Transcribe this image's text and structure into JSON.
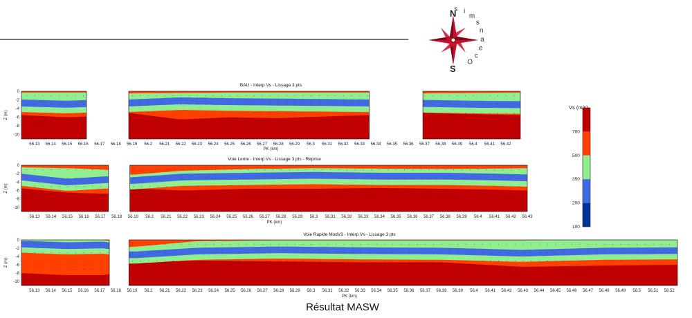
{
  "logo": {
    "letters": [
      "O",
      "c",
      "e",
      "a",
      "n",
      "s",
      "m",
      "i",
      "s"
    ],
    "compass": {
      "north": "N",
      "south": "S"
    },
    "colors": {
      "primary": "#c8102e",
      "dark": "#7a0a14"
    }
  },
  "figure_title": "Résultat MASW",
  "colorbar": {
    "title": "Vs (m/s)",
    "ticks": [
      "700",
      "500",
      "350",
      "200",
      "100"
    ],
    "classes": [
      {
        "range": "> 700",
        "color": "#c00000"
      },
      {
        "range": "500-700",
        "color": "#ff4000"
      },
      {
        "range": "350-500",
        "color": "#90ee90"
      },
      {
        "range": "200-350",
        "color": "#4169e1"
      },
      {
        "range": "100-200",
        "color": "#003399"
      }
    ]
  },
  "chart_data": [
    {
      "type": "heatmap",
      "title": "BAU - Interp Vs - Lissage 3 pts",
      "xlabel": "PK (km)",
      "ylabel": "Z (m)",
      "x_ticks": [
        "56.13",
        "56.14",
        "56.15",
        "56.16",
        "56.17",
        "56.18",
        "56.19",
        "56.2",
        "56.21",
        "56.22",
        "56.23",
        "56.24",
        "56.25",
        "56.26",
        "56.27",
        "56.28",
        "56.29",
        "56.3",
        "56.31",
        "56.32",
        "56.33",
        "56.34",
        "56.35",
        "56.36",
        "56.37",
        "56.38",
        "56.39",
        "56.4",
        "56.41",
        "56.42"
      ],
      "y_ticks": [
        "0",
        "-2",
        "-4",
        "-6",
        "-8",
        "-10"
      ],
      "xlim": [
        56.122,
        56.429
      ],
      "ylim": [
        -11,
        0
      ],
      "gaps": [
        [
          56.162,
          56.188
        ],
        [
          56.336,
          56.369
        ]
      ],
      "layer_boundaries": [
        {
          "x": [
            56.122,
            56.15,
            56.165,
            56.188,
            56.22,
            56.25,
            56.28,
            56.31,
            56.336,
            56.369,
            56.4,
            56.429
          ],
          "z": [
            -1.0,
            -1.0,
            -1.0,
            -1.2,
            -1.1,
            -1.0,
            -1.0,
            -1.0,
            -1.0,
            -1.2,
            -1.1,
            -1.0
          ]
        },
        {
          "x": [
            56.122,
            56.15,
            56.165,
            56.188,
            56.22,
            56.25,
            56.28,
            56.31,
            56.336,
            56.369,
            56.4,
            56.429
          ],
          "z": [
            -3.5,
            -3.8,
            -3.6,
            -3.5,
            -3.0,
            -3.2,
            -3.3,
            -3.4,
            -3.5,
            -3.6,
            -3.8,
            -3.9
          ]
        },
        {
          "x": [
            56.122,
            56.15,
            56.165,
            56.188,
            56.22,
            56.25,
            56.28,
            56.31,
            56.336,
            56.369,
            56.4,
            56.429
          ],
          "z": [
            -5.5,
            -6.0,
            -5.8,
            -5.0,
            -6.5,
            -6.0,
            -6.2,
            -5.8,
            -5.5,
            -5.0,
            -5.3,
            -5.5
          ]
        }
      ]
    },
    {
      "type": "heatmap",
      "title": "Voie Lente - Interp Vs - Lissage 3 pts - Reprise",
      "xlabel": "PK (km)",
      "ylabel": "Z (m)",
      "x_ticks": [
        "56.13",
        "56.14",
        "56.15",
        "56.16",
        "56.17",
        "56.18",
        "56.19",
        "56.2",
        "56.21",
        "56.22",
        "56.23",
        "56.24",
        "56.25",
        "56.26",
        "56.27",
        "56.28",
        "56.29",
        "56.3",
        "56.31",
        "56.32",
        "56.33",
        "56.34",
        "56.35",
        "56.36",
        "56.37",
        "56.38",
        "56.39",
        "56.4",
        "56.41",
        "56.42",
        "56.43"
      ],
      "y_ticks": [
        "0",
        "-2",
        "-4",
        "-6",
        "-8",
        "-10"
      ],
      "xlim": [
        56.122,
        56.43
      ],
      "ylim": [
        -11,
        0
      ],
      "gaps": [
        [
          56.175,
          56.188
        ]
      ],
      "layer_boundaries": [
        {
          "x": [
            56.122,
            56.15,
            56.175,
            56.188,
            56.22,
            56.26,
            56.3,
            56.34,
            56.38,
            56.41,
            56.43
          ],
          "z": [
            -1.2,
            -1.4,
            -1.8,
            -3.0,
            -2.0,
            -1.6,
            -1.4,
            -1.5,
            -1.6,
            -1.5,
            -1.4
          ]
        },
        {
          "x": [
            56.122,
            56.15,
            56.175,
            56.188,
            56.22,
            56.26,
            56.3,
            56.34,
            56.38,
            56.41,
            56.43
          ],
          "z": [
            -3.6,
            -4.8,
            -4.2,
            -4.5,
            -3.6,
            -3.4,
            -3.2,
            -3.4,
            -3.4,
            -3.6,
            -3.8
          ]
        },
        {
          "x": [
            56.122,
            56.15,
            56.175,
            56.188,
            56.22,
            56.26,
            56.3,
            56.34,
            56.38,
            56.41,
            56.43
          ],
          "z": [
            -5.5,
            -6.5,
            -6.8,
            -5.5,
            -6.0,
            -5.6,
            -5.6,
            -5.4,
            -5.6,
            -5.8,
            -6.0
          ]
        }
      ]
    },
    {
      "type": "heatmap",
      "title": "Voie Rapide ModV3 - Interp Vs - Lissage 3 pts",
      "xlabel": "PK (km)",
      "ylabel": "Z (m)",
      "x_ticks": [
        "56.13",
        "56.14",
        "56.15",
        "56.16",
        "56.17",
        "56.18",
        "56.19",
        "56.2",
        "56.21",
        "56.22",
        "56.23",
        "56.24",
        "56.25",
        "56.26",
        "56.27",
        "56.28",
        "56.29",
        "56.3",
        "56.31",
        "56.32",
        "56.33",
        "56.34",
        "56.35",
        "56.36",
        "56.37",
        "56.38",
        "56.39",
        "56.4",
        "56.41",
        "56.42",
        "56.43",
        "56.44",
        "56.45",
        "56.46",
        "56.47",
        "56.48",
        "56.49",
        "56.5",
        "56.51",
        "56.52"
      ],
      "y_ticks": [
        "0",
        "-2",
        "-4",
        "-6",
        "-8",
        "-10"
      ],
      "xlim": [
        56.122,
        56.525
      ],
      "ylim": [
        -11,
        0
      ],
      "gaps": [
        [
          56.176,
          56.188
        ]
      ],
      "layer_boundaries": [
        {
          "x": [
            56.122,
            56.15,
            56.176,
            56.188,
            56.23,
            56.28,
            56.33,
            56.38,
            56.43,
            56.48,
            56.525
          ],
          "z": [
            -0.5,
            -0.6,
            -0.8,
            -2.5,
            -1.0,
            -0.8,
            -0.8,
            -0.8,
            -0.8,
            -0.7,
            -0.6
          ]
        },
        {
          "x": [
            56.122,
            56.15,
            56.176,
            56.188,
            56.23,
            56.28,
            56.33,
            56.38,
            56.43,
            56.48,
            56.525
          ],
          "z": [
            -1.8,
            -2.2,
            -2.0,
            -4.5,
            -3.5,
            -3.2,
            -3.4,
            -3.5,
            -4.0,
            -3.5,
            -3.4
          ]
        },
        {
          "x": [
            56.122,
            56.15,
            56.176,
            56.188,
            56.23,
            56.28,
            56.33,
            56.38,
            56.43,
            56.48,
            56.525
          ],
          "z": [
            -8.0,
            -8.5,
            -8.5,
            -5.5,
            -5.0,
            -5.2,
            -5.4,
            -5.4,
            -6.5,
            -6.2,
            -6.0
          ]
        }
      ]
    }
  ]
}
